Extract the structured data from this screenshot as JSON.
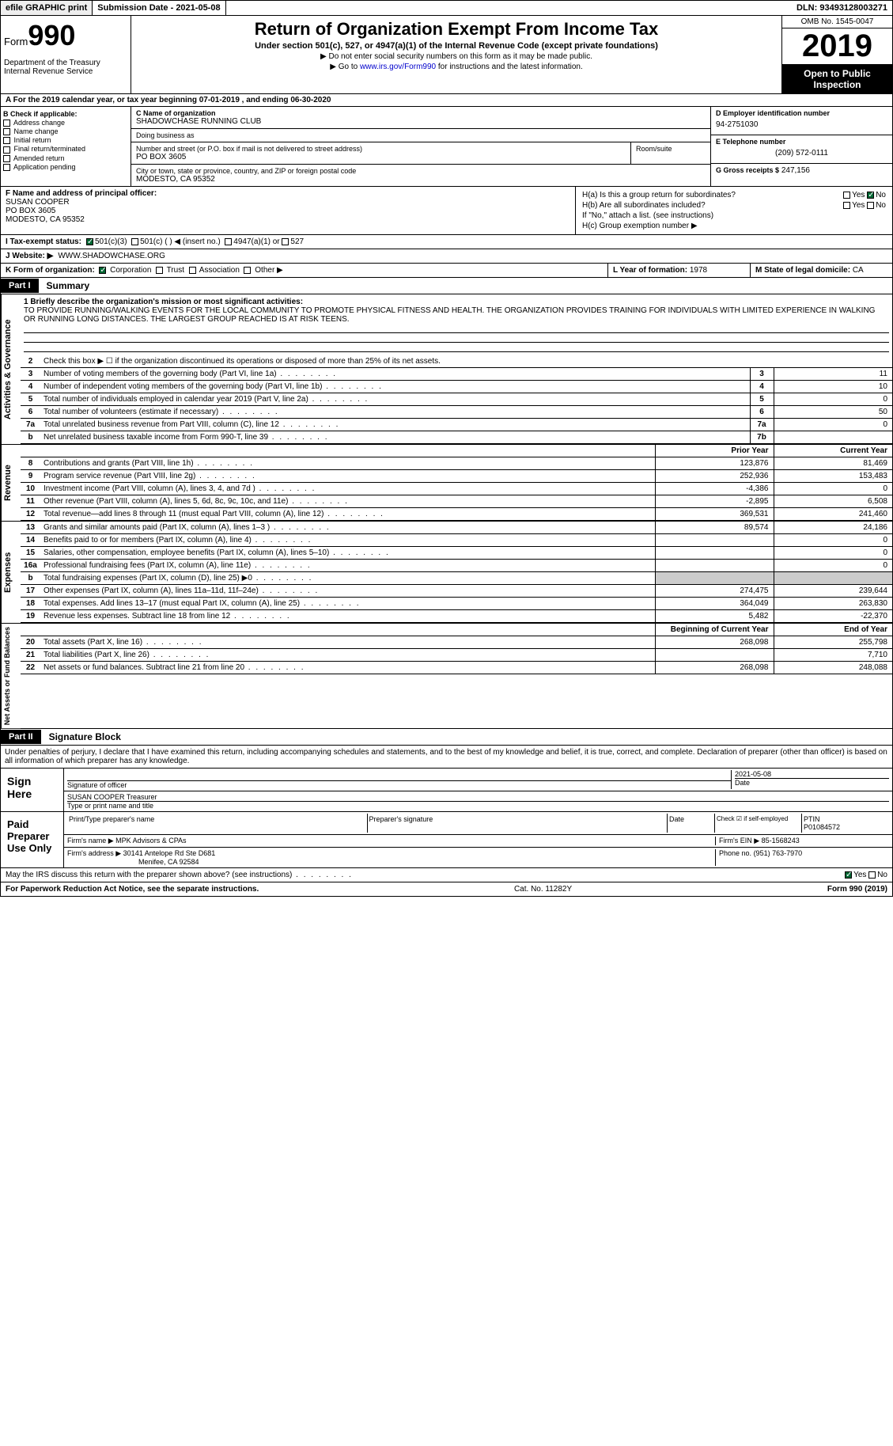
{
  "topbar": {
    "efile": "efile GRAPHIC print",
    "submission": "Submission Date - 2021-05-08",
    "dln": "DLN: 93493128003271"
  },
  "header": {
    "form": "Form",
    "num": "990",
    "dept": "Department of the Treasury\nInternal Revenue Service",
    "title": "Return of Organization Exempt From Income Tax",
    "sub": "Under section 501(c), 527, or 4947(a)(1) of the Internal Revenue Code (except private foundations)",
    "note1": "▶ Do not enter social security numbers on this form as it may be made public.",
    "note2_pre": "▶ Go to ",
    "note2_link": "www.irs.gov/Form990",
    "note2_post": " for instructions and the latest information.",
    "omb": "OMB No. 1545-0047",
    "year": "2019",
    "inspection": "Open to Public Inspection"
  },
  "lineA": "A For the 2019 calendar year, or tax year beginning 07-01-2019    , and ending 06-30-2020",
  "checkB": {
    "header": "B Check if applicable:",
    "items": [
      "Address change",
      "Name change",
      "Initial return",
      "Final return/terminated",
      "Amended return",
      "Application pending"
    ]
  },
  "org": {
    "c_label": "C Name of organization",
    "name": "SHADOWCHASE RUNNING CLUB",
    "dba": "Doing business as",
    "addr_label": "Number and street (or P.O. box if mail is not delivered to street address)",
    "addr": "PO BOX 3605",
    "room": "Room/suite",
    "city_label": "City or town, state or province, country, and ZIP or foreign postal code",
    "city": "MODESTO, CA  95352"
  },
  "right": {
    "d_label": "D Employer identification number",
    "ein": "94-2751030",
    "e_label": "E Telephone number",
    "phone": "(209) 572-0111",
    "g_label": "G Gross receipts $",
    "gross": "247,156"
  },
  "f": {
    "label": "F  Name and address of principal officer:",
    "name": "SUSAN COOPER",
    "addr": "PO BOX 3605",
    "city": "MODESTO, CA  95352"
  },
  "h": {
    "a": "H(a)  Is this a group return for subordinates?",
    "b": "H(b)  Are all subordinates included?",
    "note": "If \"No,\" attach a list. (see instructions)",
    "c": "H(c)  Group exemption number ▶"
  },
  "i": {
    "label": "I  Tax-exempt status:",
    "opts": [
      "501(c)(3)",
      "501(c) (  ) ◀ (insert no.)",
      "4947(a)(1) or",
      "527"
    ]
  },
  "j": {
    "label": "J  Website: ▶",
    "val": "WWW.SHADOWCHASE.ORG"
  },
  "k": {
    "label": "K Form of organization:",
    "opts": [
      "Corporation",
      "Trust",
      "Association",
      "Other ▶"
    ]
  },
  "l": {
    "label": "L Year of formation:",
    "val": "1978"
  },
  "m": {
    "label": "M State of legal domicile:",
    "val": "CA"
  },
  "part1": {
    "header": "Part I",
    "title": "Summary",
    "mission_label": "1  Briefly describe the organization's mission or most significant activities:",
    "mission": "TO PROVIDE RUNNING/WALKING EVENTS FOR THE LOCAL COMMUNITY TO PROMOTE PHYSICAL FITNESS AND HEALTH. THE ORGANIZATION PROVIDES TRAINING FOR INDIVIDUALS WITH LIMITED EXPERIENCE IN WALKING OR RUNNING LONG DISTANCES. THE LARGEST GROUP REACHED IS AT RISK TEENS.",
    "line2": "Check this box ▶ ☐  if the organization discontinued its operations or disposed of more than 25% of its net assets.",
    "rows_gov": [
      {
        "n": "3",
        "t": "Number of voting members of the governing body (Part VI, line 1a)",
        "box": "3",
        "v": "11"
      },
      {
        "n": "4",
        "t": "Number of independent voting members of the governing body (Part VI, line 1b)",
        "box": "4",
        "v": "10"
      },
      {
        "n": "5",
        "t": "Total number of individuals employed in calendar year 2019 (Part V, line 2a)",
        "box": "5",
        "v": "0"
      },
      {
        "n": "6",
        "t": "Total number of volunteers (estimate if necessary)",
        "box": "6",
        "v": "50"
      },
      {
        "n": "7a",
        "t": "Total unrelated business revenue from Part VIII, column (C), line 12",
        "box": "7a",
        "v": "0"
      },
      {
        "n": "b",
        "t": "Net unrelated business taxable income from Form 990-T, line 39",
        "box": "7b",
        "v": ""
      }
    ],
    "col_prior": "Prior Year",
    "col_curr": "Current Year",
    "rows_rev": [
      {
        "n": "8",
        "t": "Contributions and grants (Part VIII, line 1h)",
        "p": "123,876",
        "c": "81,469"
      },
      {
        "n": "9",
        "t": "Program service revenue (Part VIII, line 2g)",
        "p": "252,936",
        "c": "153,483"
      },
      {
        "n": "10",
        "t": "Investment income (Part VIII, column (A), lines 3, 4, and 7d )",
        "p": "-4,386",
        "c": "0"
      },
      {
        "n": "11",
        "t": "Other revenue (Part VIII, column (A), lines 5, 6d, 8c, 9c, 10c, and 11e)",
        "p": "-2,895",
        "c": "6,508"
      },
      {
        "n": "12",
        "t": "Total revenue—add lines 8 through 11 (must equal Part VIII, column (A), line 12)",
        "p": "369,531",
        "c": "241,460"
      }
    ],
    "rows_exp": [
      {
        "n": "13",
        "t": "Grants and similar amounts paid (Part IX, column (A), lines 1–3 )",
        "p": "89,574",
        "c": "24,186"
      },
      {
        "n": "14",
        "t": "Benefits paid to or for members (Part IX, column (A), line 4)",
        "p": "",
        "c": "0"
      },
      {
        "n": "15",
        "t": "Salaries, other compensation, employee benefits (Part IX, column (A), lines 5–10)",
        "p": "",
        "c": "0"
      },
      {
        "n": "16a",
        "t": "Professional fundraising fees (Part IX, column (A), line 11e)",
        "p": "",
        "c": "0"
      },
      {
        "n": "b",
        "t": "Total fundraising expenses (Part IX, column (D), line 25) ▶0",
        "p": "gray",
        "c": "gray"
      },
      {
        "n": "17",
        "t": "Other expenses (Part IX, column (A), lines 11a–11d, 11f–24e)",
        "p": "274,475",
        "c": "239,644"
      },
      {
        "n": "18",
        "t": "Total expenses. Add lines 13–17 (must equal Part IX, column (A), line 25)",
        "p": "364,049",
        "c": "263,830"
      },
      {
        "n": "19",
        "t": "Revenue less expenses. Subtract line 18 from line 12",
        "p": "5,482",
        "c": "-22,370"
      }
    ],
    "col_beg": "Beginning of Current Year",
    "col_end": "End of Year",
    "rows_net": [
      {
        "n": "20",
        "t": "Total assets (Part X, line 16)",
        "p": "268,098",
        "c": "255,798"
      },
      {
        "n": "21",
        "t": "Total liabilities (Part X, line 26)",
        "p": "",
        "c": "7,710"
      },
      {
        "n": "22",
        "t": "Net assets or fund balances. Subtract line 21 from line 20",
        "p": "268,098",
        "c": "248,088"
      }
    ]
  },
  "vtabs": {
    "gov": "Activities & Governance",
    "rev": "Revenue",
    "exp": "Expenses",
    "net": "Net Assets or Fund Balances"
  },
  "part2": {
    "header": "Part II",
    "title": "Signature Block",
    "perjury": "Under penalties of perjury, I declare that I have examined this return, including accompanying schedules and statements, and to the best of my knowledge and belief, it is true, correct, and complete. Declaration of preparer (other than officer) is based on all information of which preparer has any knowledge."
  },
  "sign": {
    "left": "Sign Here",
    "sig_label": "Signature of officer",
    "date": "2021-05-08",
    "date_label": "Date",
    "name": "SUSAN COOPER Treasurer",
    "name_label": "Type or print name and title"
  },
  "preparer": {
    "left": "Paid Preparer Use Only",
    "h1": "Print/Type preparer's name",
    "h2": "Preparer's signature",
    "h3": "Date",
    "h4_check": "Check ☑ if self-employed",
    "h5": "PTIN",
    "ptin": "P01084572",
    "firm_label": "Firm's name    ▶",
    "firm": "MPK Advisors & CPAs",
    "ein_label": "Firm's EIN ▶",
    "ein": "85-1568243",
    "addr_label": "Firm's address ▶",
    "addr": "30141 Antelope Rd Ste D681",
    "addr2": "Menifee, CA  92584",
    "phone_label": "Phone no.",
    "phone": "(951) 763-7970"
  },
  "discuss": "May the IRS discuss this return with the preparer shown above? (see instructions)",
  "footer": {
    "left": "For Paperwork Reduction Act Notice, see the separate instructions.",
    "mid": "Cat. No. 11282Y",
    "right": "Form 990 (2019)"
  }
}
